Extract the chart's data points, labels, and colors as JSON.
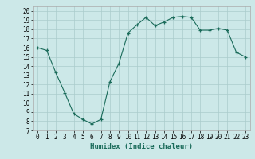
{
  "title": "",
  "xlabel": "Humidex (Indice chaleur)",
  "x": [
    0,
    1,
    2,
    3,
    4,
    5,
    6,
    7,
    8,
    9,
    10,
    11,
    12,
    13,
    14,
    15,
    16,
    17,
    18,
    19,
    20,
    21,
    22,
    23
  ],
  "y": [
    16.0,
    15.7,
    13.3,
    11.1,
    8.8,
    8.2,
    7.7,
    8.2,
    12.3,
    14.3,
    17.6,
    18.5,
    19.3,
    18.4,
    18.8,
    19.3,
    19.4,
    19.3,
    17.9,
    17.9,
    18.1,
    17.9,
    15.5,
    15.0
  ],
  "xlim": [
    -0.5,
    23.5
  ],
  "ylim": [
    7,
    20.5
  ],
  "yticks": [
    7,
    8,
    9,
    10,
    11,
    12,
    13,
    14,
    15,
    16,
    17,
    18,
    19,
    20
  ],
  "xticks": [
    0,
    1,
    2,
    3,
    4,
    5,
    6,
    7,
    8,
    9,
    10,
    11,
    12,
    13,
    14,
    15,
    16,
    17,
    18,
    19,
    20,
    21,
    22,
    23
  ],
  "line_color": "#1a6b5a",
  "marker_color": "#1a6b5a",
  "bg_color": "#cce8e8",
  "grid_color": "#aacccc",
  "axis_bg": "#cce8e8"
}
